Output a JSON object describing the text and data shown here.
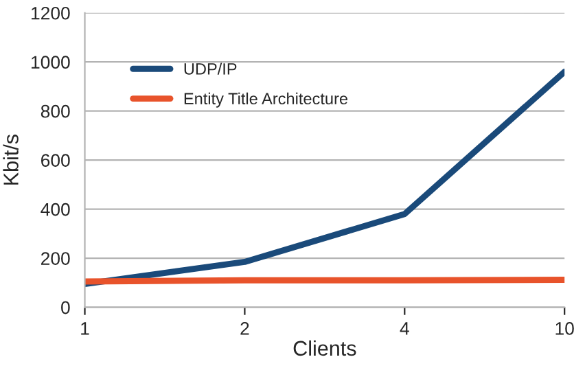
{
  "chart_data": {
    "type": "line",
    "xlabel": "Clients",
    "ylabel": "Kbit/s",
    "categories": [
      "1",
      "2",
      "4",
      "10"
    ],
    "series": [
      {
        "name": "UDP/IP",
        "color": "#1a4a7a",
        "values": [
          95,
          185,
          380,
          960
        ]
      },
      {
        "name": "Entity Title Architecture",
        "color": "#e8532b",
        "values": [
          105,
          110,
          110,
          112
        ]
      }
    ],
    "ylim": [
      0,
      1200
    ],
    "yticks": [
      0,
      200,
      400,
      600,
      800,
      1000,
      1200
    ],
    "grid": "y",
    "legend": "top left",
    "marker": "none",
    "line_style": "solid"
  }
}
